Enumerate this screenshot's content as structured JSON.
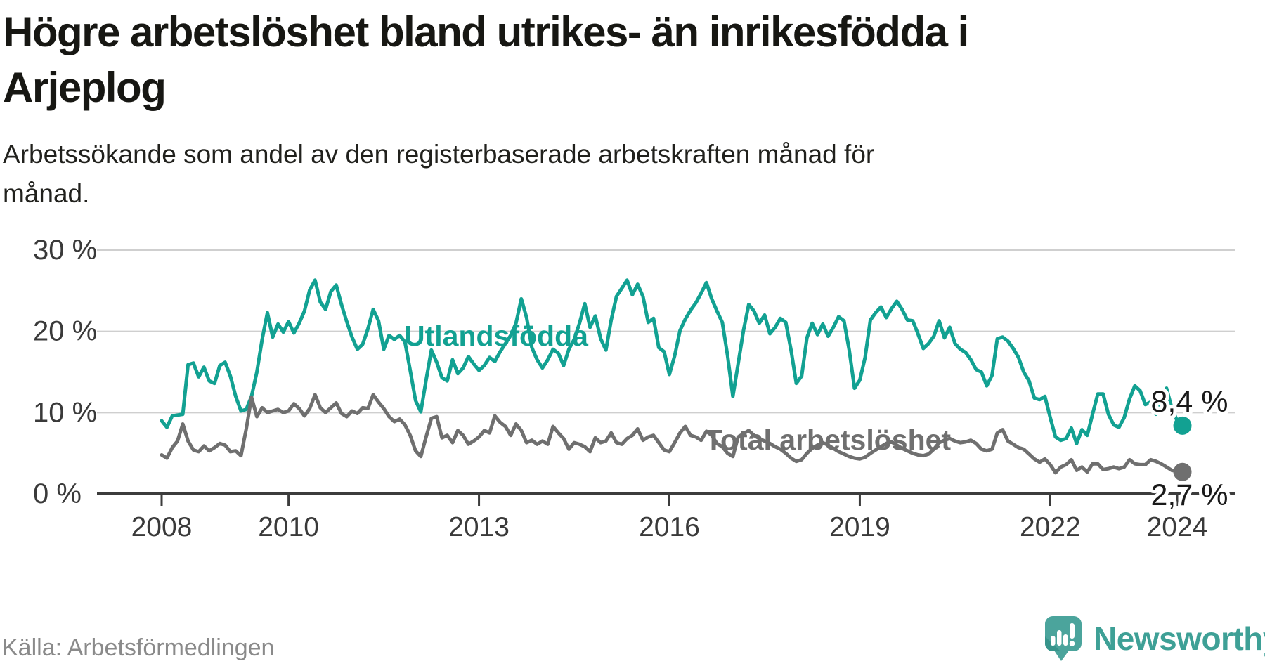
{
  "title_lines": [
    "Högre arbetslöshet bland utrikes- än inrikesfödda i",
    "Arjeplog"
  ],
  "subtitle_lines": [
    "Arbetssökande som andel av den registerbaserade arbetskraften månad för",
    "månad."
  ],
  "source": "Källa: Arbetsförmedlingen",
  "branding": {
    "wordmark": "Newsworthy",
    "bubble_color": "#4ba49c",
    "bubble_shadow": "#37948b",
    "wordmark_color": "#3ea096",
    "glyph": "bar-chart-exclamation-icon"
  },
  "chart_data": {
    "type": "line",
    "title": "Högre arbetslöshet bland utrikes- än inrikesfödda i Arjeplog",
    "x_start": "2008-01",
    "x_end": "2024-02",
    "x_frequency": "monthly",
    "grid": "horizontal-only",
    "ylim": [
      0,
      31
    ],
    "y_ticks": [
      {
        "v": 0,
        "label": "0 %"
      },
      {
        "v": 10,
        "label": "10 %"
      },
      {
        "v": 20,
        "label": "20 %"
      },
      {
        "v": 30,
        "label": "30 %"
      }
    ],
    "x_ticks": [
      {
        "year": 2008,
        "label": "2008"
      },
      {
        "year": 2010,
        "label": "2010"
      },
      {
        "year": 2013,
        "label": "2013"
      },
      {
        "year": 2016,
        "label": "2016"
      },
      {
        "year": 2019,
        "label": "2019"
      },
      {
        "year": 2022,
        "label": "2022"
      },
      {
        "year": 2024,
        "label": "2024"
      }
    ],
    "series": [
      {
        "name": "Utlandsfödda",
        "color": "#12a192",
        "end_label": "8,4 %",
        "end_value": 8.4,
        "values": [
          9.0,
          8.2,
          9.6,
          9.7,
          9.8,
          15.9,
          16.1,
          14.4,
          15.6,
          13.9,
          13.6,
          15.8,
          16.2,
          14.5,
          12.0,
          10.2,
          10.4,
          12.0,
          15.0,
          19.0,
          22.3,
          19.3,
          20.9,
          19.9,
          21.2,
          19.8,
          21.0,
          22.5,
          25.1,
          26.3,
          23.6,
          22.7,
          24.9,
          25.7,
          23.3,
          21.2,
          19.3,
          17.8,
          18.4,
          20.3,
          22.7,
          21.3,
          17.8,
          19.5,
          19.0,
          19.5,
          18.7,
          15.2,
          11.5,
          10.1,
          14.0,
          17.7,
          16.2,
          14.3,
          13.9,
          16.5,
          14.8,
          15.5,
          16.9,
          16.0,
          15.2,
          15.8,
          16.8,
          16.3,
          17.5,
          18.5,
          19.5,
          21.0,
          24.0,
          21.7,
          18.0,
          16.5,
          15.5,
          16.5,
          17.8,
          17.3,
          15.8,
          17.8,
          19.0,
          21.0,
          23.4,
          20.5,
          21.9,
          19.1,
          17.7,
          21.4,
          24.3,
          25.3,
          26.3,
          24.5,
          25.8,
          24.3,
          21.1,
          21.6,
          18.0,
          17.5,
          14.7,
          17.0,
          20.1,
          21.5,
          22.6,
          23.5,
          24.7,
          26.0,
          24.0,
          22.5,
          21.1,
          17.0,
          12.0,
          16.0,
          20.1,
          23.3,
          22.5,
          21.0,
          22.0,
          19.7,
          20.5,
          21.6,
          21.1,
          17.7,
          13.6,
          14.5,
          19.2,
          21.0,
          19.6,
          20.9,
          19.4,
          20.5,
          21.8,
          21.3,
          17.7,
          13.0,
          14.0,
          16.8,
          21.4,
          22.3,
          23.0,
          21.7,
          22.8,
          23.7,
          22.7,
          21.4,
          21.3,
          19.7,
          17.9,
          18.5,
          19.4,
          21.3,
          19.2,
          20.5,
          18.5,
          17.8,
          17.4,
          16.5,
          15.3,
          15.0,
          13.3,
          14.6,
          19.1,
          19.3,
          18.8,
          17.9,
          16.8,
          15.0,
          13.9,
          11.8,
          11.6,
          12.0,
          9.4,
          7.0,
          6.6,
          6.8,
          8.1,
          6.2,
          7.9,
          7.2,
          9.8,
          12.3,
          12.3,
          9.8,
          8.5,
          8.2,
          9.4,
          11.7,
          13.3,
          12.7,
          11.0,
          11.3,
          9.8,
          11.5,
          13.0,
          10.5,
          9.0,
          8.4
        ]
      },
      {
        "name": "Total arbetslöshet",
        "color": "#6f6f6f",
        "end_label": "2,7 %",
        "end_value": 2.7,
        "values": [
          4.8,
          4.4,
          5.7,
          6.5,
          8.6,
          6.5,
          5.4,
          5.2,
          5.9,
          5.3,
          5.7,
          6.2,
          6.0,
          5.2,
          5.3,
          4.7,
          8.0,
          11.9,
          9.5,
          10.6,
          10.0,
          10.2,
          10.4,
          10.0,
          10.2,
          11.1,
          10.5,
          9.6,
          10.5,
          12.2,
          10.6,
          10.0,
          10.6,
          11.2,
          9.9,
          9.5,
          10.2,
          9.9,
          10.6,
          10.5,
          12.2,
          11.3,
          10.5,
          9.5,
          8.9,
          9.2,
          8.5,
          7.2,
          5.3,
          4.6,
          7.0,
          9.3,
          9.5,
          6.9,
          7.2,
          6.3,
          7.8,
          7.2,
          6.1,
          6.5,
          7.0,
          7.8,
          7.5,
          9.6,
          8.8,
          8.3,
          7.2,
          8.6,
          7.8,
          6.3,
          6.6,
          6.1,
          6.5,
          6.1,
          8.3,
          7.5,
          6.8,
          5.5,
          6.3,
          6.1,
          5.8,
          5.2,
          6.9,
          6.3,
          6.5,
          7.5,
          6.3,
          6.1,
          6.8,
          7.2,
          8.0,
          6.6,
          7.0,
          7.2,
          6.3,
          5.4,
          5.2,
          6.3,
          7.5,
          8.3,
          7.2,
          7.0,
          6.6,
          7.7,
          7.2,
          6.2,
          5.8,
          5.0,
          4.6,
          7.0,
          7.4,
          7.8,
          7.2,
          6.8,
          6.5,
          6.2,
          5.8,
          5.5,
          5.0,
          4.4,
          4.0,
          4.2,
          5.0,
          5.6,
          6.0,
          6.3,
          6.0,
          5.6,
          5.2,
          4.9,
          4.6,
          4.4,
          4.3,
          4.5,
          5.0,
          5.4,
          5.8,
          6.2,
          6.4,
          6.0,
          5.6,
          5.3,
          5.0,
          4.8,
          4.7,
          4.9,
          5.5,
          6.3,
          6.6,
          6.8,
          6.5,
          6.3,
          6.4,
          6.6,
          6.2,
          5.5,
          5.3,
          5.5,
          7.5,
          7.9,
          6.5,
          6.1,
          5.7,
          5.5,
          4.9,
          4.3,
          3.9,
          4.3,
          3.6,
          2.6,
          3.3,
          3.6,
          4.2,
          2.9,
          3.3,
          2.7,
          3.7,
          3.7,
          3.0,
          3.1,
          3.3,
          3.1,
          3.3,
          4.2,
          3.7,
          3.6,
          3.6,
          4.2,
          4.0,
          3.7,
          3.3,
          2.9,
          2.8,
          2.7
        ]
      }
    ],
    "colors": {
      "grid": "#cfcfcf",
      "axis": "#3c3c3c",
      "tick_text": "#3a3a3a"
    }
  }
}
